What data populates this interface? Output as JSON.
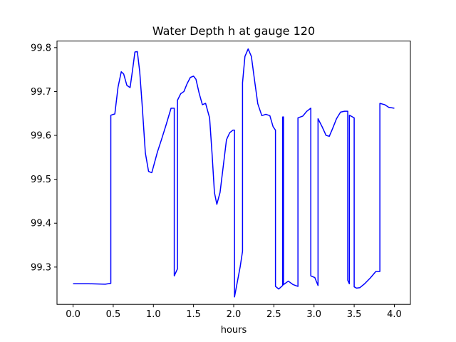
{
  "chart_data": {
    "type": "line",
    "title": "Water Depth h at gauge 120",
    "xlabel": "hours",
    "ylabel": "",
    "xlim": [
      -0.2,
      4.2
    ],
    "ylim": [
      99.215,
      99.815
    ],
    "xticks": [
      0.0,
      0.5,
      1.0,
      1.5,
      2.0,
      2.5,
      3.0,
      3.5,
      4.0
    ],
    "xtick_labels": [
      "0.0",
      "0.5",
      "1.0",
      "1.5",
      "2.0",
      "2.5",
      "3.0",
      "3.5",
      "4.0"
    ],
    "yticks": [
      99.3,
      99.4,
      99.5,
      99.6,
      99.7,
      99.8
    ],
    "ytick_labels": [
      "99.3",
      "99.4",
      "99.5",
      "99.6",
      "99.7",
      "99.8"
    ],
    "grid": false,
    "series": [
      {
        "color": "#0000ff",
        "x": [
          0.0,
          0.2,
          0.4,
          0.47,
          0.47,
          0.52,
          0.56,
          0.6,
          0.63,
          0.67,
          0.71,
          0.74,
          0.77,
          0.8,
          0.83,
          0.86,
          0.9,
          0.94,
          0.98,
          1.01,
          1.05,
          1.1,
          1.16,
          1.22,
          1.26,
          1.26,
          1.3,
          1.3,
          1.34,
          1.38,
          1.42,
          1.46,
          1.5,
          1.53,
          1.57,
          1.61,
          1.65,
          1.7,
          1.73,
          1.76,
          1.79,
          1.83,
          1.87,
          1.91,
          1.95,
          1.99,
          2.01,
          2.01,
          2.08,
          2.11,
          2.11,
          2.14,
          2.18,
          2.22,
          2.26,
          2.3,
          2.35,
          2.4,
          2.45,
          2.49,
          2.52,
          2.52,
          2.56,
          2.61,
          2.61,
          2.62,
          2.62,
          2.68,
          2.74,
          2.8,
          2.8,
          2.86,
          2.91,
          2.96,
          2.96,
          3.01,
          3.05,
          3.05,
          3.1,
          3.15,
          3.19,
          3.23,
          3.28,
          3.33,
          3.38,
          3.42,
          3.42,
          3.44,
          3.44,
          3.5,
          3.5,
          3.53,
          3.57,
          3.63,
          3.7,
          3.77,
          3.82,
          3.82,
          3.88,
          3.93,
          4.0
        ],
        "y": [
          99.262,
          99.262,
          99.261,
          99.263,
          99.646,
          99.649,
          99.71,
          99.745,
          99.74,
          99.714,
          99.709,
          99.748,
          99.79,
          99.791,
          99.745,
          99.67,
          99.56,
          99.518,
          99.515,
          99.535,
          99.562,
          99.59,
          99.625,
          99.662,
          99.662,
          99.28,
          99.296,
          99.68,
          99.695,
          99.7,
          99.718,
          99.732,
          99.735,
          99.728,
          99.696,
          99.67,
          99.673,
          99.64,
          99.56,
          99.47,
          99.443,
          99.47,
          99.53,
          99.59,
          99.606,
          99.612,
          99.612,
          99.232,
          99.3,
          99.336,
          99.72,
          99.78,
          99.797,
          99.78,
          99.725,
          99.672,
          99.645,
          99.648,
          99.645,
          99.62,
          99.612,
          99.256,
          99.25,
          99.258,
          99.642,
          99.642,
          99.26,
          99.268,
          99.26,
          99.256,
          99.64,
          99.644,
          99.655,
          99.662,
          99.28,
          99.276,
          99.258,
          99.638,
          99.62,
          99.6,
          99.598,
          99.615,
          99.638,
          99.653,
          99.655,
          99.655,
          99.27,
          99.262,
          99.646,
          99.64,
          99.255,
          99.252,
          99.253,
          99.262,
          99.275,
          99.29,
          99.29,
          99.673,
          99.67,
          99.664,
          99.662
        ]
      }
    ]
  }
}
